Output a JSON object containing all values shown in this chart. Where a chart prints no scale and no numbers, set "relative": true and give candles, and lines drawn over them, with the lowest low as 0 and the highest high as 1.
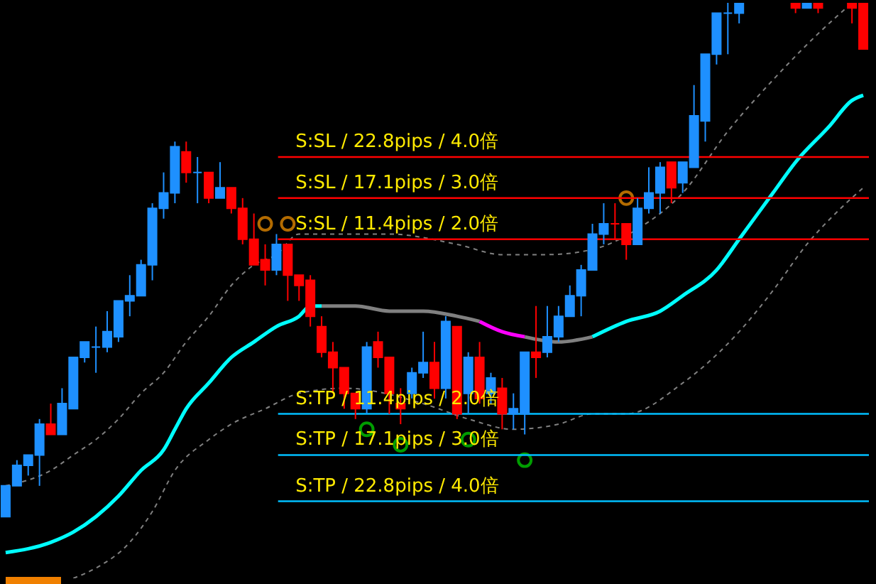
{
  "chart_data": {
    "type": "candlestick",
    "relative": true,
    "categories": [
      null,
      null,
      null,
      null,
      null,
      null,
      null,
      null,
      null,
      null,
      null,
      null,
      null,
      null,
      null,
      null,
      null,
      null,
      null,
      null,
      null,
      null,
      null,
      null,
      null,
      null,
      null,
      null,
      null,
      null,
      null,
      null,
      null,
      null,
      null,
      null,
      null,
      null,
      null,
      null,
      null,
      null,
      null,
      null,
      null,
      null,
      null,
      null,
      null,
      null,
      null,
      null,
      null,
      null,
      null,
      null,
      null,
      null,
      null,
      null,
      null,
      null,
      null,
      null,
      null,
      null,
      null,
      null,
      null,
      null,
      null,
      null,
      null,
      null,
      null,
      null,
      null
    ],
    "ohlc": [
      [
        0.0,
        0.06,
        0.0,
        0.06
      ],
      [
        0.06,
        0.11,
        0.06,
        0.1
      ],
      [
        0.1,
        0.12,
        0.08,
        0.12
      ],
      [
        0.12,
        0.19,
        0.06,
        0.18
      ],
      [
        0.18,
        0.22,
        0.16,
        0.16
      ],
      [
        0.16,
        0.25,
        0.16,
        0.22
      ],
      [
        0.21,
        0.31,
        0.21,
        0.31
      ],
      [
        0.31,
        0.34,
        0.3,
        0.34
      ],
      [
        0.33,
        0.37,
        0.28,
        0.33
      ],
      [
        0.33,
        0.4,
        0.32,
        0.36
      ],
      [
        0.35,
        0.42,
        0.34,
        0.42
      ],
      [
        0.42,
        0.47,
        0.39,
        0.43
      ],
      [
        0.43,
        0.5,
        0.43,
        0.49
      ],
      [
        0.49,
        0.61,
        0.46,
        0.6
      ],
      [
        0.6,
        0.67,
        0.58,
        0.63
      ],
      [
        0.63,
        0.73,
        0.61,
        0.72
      ],
      [
        0.71,
        0.73,
        0.65,
        0.67
      ],
      [
        0.67,
        0.7,
        0.61,
        0.67
      ],
      [
        0.67,
        0.67,
        0.61,
        0.62
      ],
      [
        0.62,
        0.69,
        0.62,
        0.64
      ],
      [
        0.64,
        0.64,
        0.59,
        0.6
      ],
      [
        0.6,
        0.62,
        0.53,
        0.54
      ],
      [
        0.54,
        0.59,
        0.49,
        0.49
      ],
      [
        0.5,
        0.53,
        0.45,
        0.48
      ],
      [
        0.48,
        0.55,
        0.47,
        0.53
      ],
      [
        0.53,
        0.53,
        0.42,
        0.47
      ],
      [
        0.47,
        0.47,
        0.42,
        0.45
      ],
      [
        0.46,
        0.47,
        0.37,
        0.39
      ],
      [
        0.37,
        0.39,
        0.31,
        0.32
      ],
      [
        0.32,
        0.34,
        0.24,
        0.29
      ],
      [
        0.29,
        0.29,
        0.21,
        0.24
      ],
      [
        0.24,
        0.24,
        0.19,
        0.21
      ],
      [
        0.21,
        0.34,
        0.2,
        0.33
      ],
      [
        0.34,
        0.36,
        0.29,
        0.31
      ],
      [
        0.31,
        0.31,
        0.2,
        0.24
      ],
      [
        0.22,
        0.25,
        0.18,
        0.21
      ],
      [
        0.24,
        0.29,
        0.23,
        0.28
      ],
      [
        0.28,
        0.36,
        0.27,
        0.3
      ],
      [
        0.3,
        0.34,
        0.23,
        0.25
      ],
      [
        0.25,
        0.39,
        0.23,
        0.38
      ],
      [
        0.37,
        0.37,
        0.19,
        0.2
      ],
      [
        0.24,
        0.32,
        0.2,
        0.31
      ],
      [
        0.31,
        0.34,
        0.22,
        0.23
      ],
      [
        0.24,
        0.28,
        0.22,
        0.27
      ],
      [
        0.25,
        0.27,
        0.17,
        0.2
      ],
      [
        0.2,
        0.24,
        0.17,
        0.21
      ],
      [
        0.2,
        0.32,
        0.16,
        0.32
      ],
      [
        0.32,
        0.41,
        0.27,
        0.31
      ],
      [
        0.32,
        0.41,
        0.31,
        0.35
      ],
      [
        0.35,
        0.41,
        0.34,
        0.39
      ],
      [
        0.39,
        0.45,
        0.39,
        0.43
      ],
      [
        0.43,
        0.49,
        0.39,
        0.48
      ],
      [
        0.48,
        0.57,
        0.48,
        0.55
      ],
      [
        0.55,
        0.61,
        0.53,
        0.57
      ],
      [
        0.57,
        0.61,
        0.54,
        0.57
      ],
      [
        0.57,
        0.57,
        0.5,
        0.53
      ],
      [
        0.53,
        0.62,
        0.53,
        0.6
      ],
      [
        0.6,
        0.68,
        0.59,
        0.63
      ],
      [
        0.63,
        0.69,
        0.59,
        0.68
      ],
      [
        0.69,
        0.69,
        0.61,
        0.64
      ],
      [
        0.65,
        0.69,
        0.63,
        0.69
      ],
      [
        0.68,
        0.84,
        0.68,
        0.78
      ],
      [
        0.77,
        0.9,
        0.73,
        0.9
      ],
      [
        0.9,
        0.98,
        0.88,
        0.98
      ],
      [
        0.98,
        1.0,
        0.9,
        0.98
      ],
      [
        0.98,
        1.0,
        0.96,
        1.0
      ],
      null,
      null,
      null,
      null,
      [
        1.0,
        1.0,
        0.98,
        0.99
      ],
      [
        0.99,
        1.0,
        0.99,
        1.0
      ],
      [
        1.0,
        1.0,
        0.98,
        0.99
      ],
      null,
      null,
      [
        1.0,
        1.0,
        0.96,
        0.99
      ],
      [
        1.0,
        1.0,
        0.91,
        0.91
      ]
    ],
    "colors": [
      "#1e90ff",
      "#1e90ff",
      "#1e90ff",
      "#1e90ff",
      "#ff0000",
      "#1e90ff",
      "#1e90ff",
      "#1e90ff",
      "#1e90ff",
      "#1e90ff",
      "#1e90ff",
      "#1e90ff",
      "#1e90ff",
      "#1e90ff",
      "#1e90ff",
      "#1e90ff",
      "#ff0000",
      "#1e90ff",
      "#ff0000",
      "#1e90ff",
      "#ff0000",
      "#ff0000",
      "#ff0000",
      "#ff0000",
      "#1e90ff",
      "#ff0000",
      "#ff0000",
      "#ff0000",
      "#ff0000",
      "#ff0000",
      "#ff0000",
      "#ff0000",
      "#1e90ff",
      "#ff0000",
      "#ff0000",
      "#ff0000",
      "#1e90ff",
      "#1e90ff",
      "#ff0000",
      "#1e90ff",
      "#ff0000",
      "#1e90ff",
      "#ff0000",
      "#1e90ff",
      "#ff0000",
      "#1e90ff",
      "#1e90ff",
      "#ff0000",
      "#1e90ff",
      "#1e90ff",
      "#1e90ff",
      "#1e90ff",
      "#1e90ff",
      "#1e90ff",
      "#ff0000",
      "#ff0000",
      "#1e90ff",
      "#1e90ff",
      "#1e90ff",
      "#ff0000",
      "#1e90ff",
      "#1e90ff",
      "#1e90ff",
      "#1e90ff",
      "#1e90ff",
      "#1e90ff",
      null,
      null,
      null,
      null,
      "#ff0000",
      "#1e90ff",
      "#ff0000",
      null,
      null,
      "#ff0000",
      "#ff0000"
    ],
    "series": [
      {
        "type": "line",
        "color": "#808080",
        "line_style": "dashed",
        "values": [
          0.06,
          null,
          null,
          null,
          0.09,
          null,
          0.12,
          null,
          0.15,
          null,
          0.19,
          null,
          0.24,
          null,
          0.28,
          null,
          0.34,
          null,
          0.39,
          null,
          0.45,
          null,
          0.49,
          null,
          0.51,
          null,
          0.55,
          null,
          null,
          null,
          0.55,
          null,
          null,
          null,
          0.55,
          null,
          null,
          null,
          null,
          null,
          0.53,
          null,
          null,
          null,
          0.51,
          null,
          null,
          null,
          0.51,
          null,
          null,
          null,
          0.52,
          null,
          null,
          null,
          0.56,
          null,
          null,
          null,
          0.63,
          null,
          null,
          null,
          0.75,
          null,
          null,
          null,
          0.85,
          null,
          null,
          null,
          0.94,
          null,
          null,
          1.0,
          null
        ]
      },
      {
        "type": "line",
        "color": "#808080",
        "line_style": "dashed",
        "values": [
          null,
          null,
          null,
          null,
          null,
          null,
          -0.12,
          null,
          -0.1,
          null,
          null,
          -0.05,
          null,
          0.01,
          null,
          0.09,
          null,
          null,
          0.15,
          null,
          0.18,
          null,
          null,
          0.21,
          null,
          null,
          0.24,
          null,
          null,
          null,
          0.25,
          null,
          null,
          null,
          null,
          null,
          null,
          0.22,
          null,
          null,
          null,
          0.19,
          null,
          null,
          null,
          0.17,
          null,
          null,
          null,
          0.18,
          null,
          null,
          0.2,
          null,
          null,
          0.2,
          null,
          null,
          null,
          null,
          0.26,
          null,
          null,
          null,
          null,
          0.36,
          null,
          null,
          0.44,
          null,
          null,
          0.53,
          null,
          null,
          0.6,
          null,
          0.64
        ]
      },
      {
        "type": "line",
        "color": "#00ffff",
        "values": [
          -0.07,
          null,
          null,
          null,
          -0.05,
          null,
          -0.03,
          null,
          0.0,
          null,
          0.04,
          null,
          0.09,
          null,
          0.13,
          0.17,
          0.21,
          null,
          0.26,
          null,
          0.31,
          null,
          0.34,
          null,
          0.37,
          null,
          0.39,
          0.41,
          0.41,
          null,
          null,
          null,
          null,
          null,
          null,
          null,
          null,
          null,
          null,
          null,
          null,
          null,
          null,
          null,
          null,
          null,
          null,
          null,
          null,
          null,
          null,
          null,
          null,
          null,
          null,
          null,
          null,
          null,
          null,
          null,
          null,
          null,
          null,
          null,
          null,
          null,
          null,
          null,
          null,
          null,
          null,
          null,
          null,
          null,
          null,
          null,
          null
        ]
      },
      {
        "type": "line",
        "color": "#808080",
        "values": [
          null,
          null,
          null,
          null,
          null,
          null,
          null,
          null,
          null,
          null,
          null,
          null,
          null,
          null,
          null,
          null,
          null,
          null,
          null,
          null,
          null,
          null,
          null,
          null,
          null,
          null,
          null,
          null,
          0.41,
          null,
          null,
          0.41,
          null,
          null,
          0.4,
          null,
          null,
          0.4,
          null,
          null,
          0.39,
          null,
          0.38,
          null,
          null,
          null,
          null,
          null,
          null,
          null,
          null,
          null,
          null,
          null,
          null,
          null,
          null,
          null,
          null,
          null,
          null,
          null,
          null,
          null,
          null,
          null,
          null,
          null,
          null,
          null,
          null,
          null,
          null,
          null,
          null,
          null,
          null
        ]
      },
      {
        "type": "line",
        "color": "#ff00ff",
        "values": [
          null,
          null,
          null,
          null,
          null,
          null,
          null,
          null,
          null,
          null,
          null,
          null,
          null,
          null,
          null,
          null,
          null,
          null,
          null,
          null,
          null,
          null,
          null,
          null,
          null,
          null,
          null,
          null,
          null,
          null,
          null,
          null,
          null,
          null,
          null,
          null,
          null,
          null,
          null,
          null,
          null,
          null,
          0.38,
          null,
          0.36,
          null,
          0.35,
          null,
          null,
          null,
          null,
          null,
          null,
          null,
          null,
          null,
          null,
          null,
          null,
          null,
          null,
          null,
          null,
          null,
          null,
          null,
          null,
          null,
          null,
          null,
          null,
          null,
          null,
          null,
          null,
          null,
          null
        ]
      },
      {
        "type": "line",
        "color": "#808080",
        "values": [
          null,
          null,
          null,
          null,
          null,
          null,
          null,
          null,
          null,
          null,
          null,
          null,
          null,
          null,
          null,
          null,
          null,
          null,
          null,
          null,
          null,
          null,
          null,
          null,
          null,
          null,
          null,
          null,
          null,
          null,
          null,
          null,
          null,
          null,
          null,
          null,
          null,
          null,
          null,
          null,
          null,
          null,
          null,
          null,
          null,
          null,
          0.35,
          null,
          null,
          0.34,
          null,
          null,
          0.35,
          null,
          null,
          null,
          null,
          null,
          null,
          null,
          null,
          null,
          null,
          null,
          null,
          null,
          null,
          null,
          null,
          null,
          null,
          null,
          null,
          null,
          null,
          null,
          null
        ]
      },
      {
        "type": "line",
        "color": "#00ffff",
        "values": [
          null,
          null,
          null,
          null,
          null,
          null,
          null,
          null,
          null,
          null,
          null,
          null,
          null,
          null,
          null,
          null,
          null,
          null,
          null,
          null,
          null,
          null,
          null,
          null,
          null,
          null,
          null,
          null,
          null,
          null,
          null,
          null,
          null,
          null,
          null,
          null,
          null,
          null,
          null,
          null,
          null,
          null,
          null,
          null,
          null,
          null,
          null,
          null,
          null,
          null,
          null,
          null,
          0.35,
          null,
          null,
          0.38,
          null,
          null,
          0.4,
          null,
          0.43,
          null,
          null,
          0.48,
          null,
          0.54,
          null,
          null,
          0.63,
          null,
          0.69,
          null,
          null,
          0.76,
          null,
          0.81,
          0.82
        ]
      },
      {
        "type": "scatter",
        "color": "#ff9900",
        "marker": "circle",
        "values": [
          null,
          null,
          null,
          null,
          null,
          null,
          null,
          null,
          null,
          null,
          null,
          null,
          null,
          null,
          null,
          null,
          null,
          null,
          null,
          null,
          null,
          null,
          null,
          0.57,
          null,
          0.57,
          null,
          null,
          null,
          null,
          null,
          null,
          null,
          null,
          null,
          null,
          null,
          null,
          null,
          null,
          null,
          null,
          null,
          null,
          null,
          null,
          null,
          null,
          null,
          null,
          null,
          null,
          null,
          null,
          null,
          0.62,
          null,
          null,
          null,
          null,
          null,
          null,
          null,
          null,
          null,
          null,
          null,
          null,
          null,
          null,
          null,
          null,
          null,
          null,
          null,
          null,
          null
        ]
      },
      {
        "type": "scatter",
        "color": "#00e000",
        "marker": "circle",
        "values": [
          null,
          null,
          null,
          null,
          null,
          null,
          null,
          null,
          null,
          null,
          null,
          null,
          null,
          null,
          null,
          null,
          null,
          null,
          null,
          null,
          null,
          null,
          null,
          null,
          null,
          null,
          null,
          null,
          null,
          null,
          null,
          null,
          0.17,
          null,
          null,
          0.14,
          null,
          null,
          null,
          null,
          null,
          0.15,
          null,
          null,
          null,
          null,
          0.11,
          null,
          null,
          null,
          null,
          null,
          null,
          null,
          null,
          null,
          null,
          null,
          null,
          null,
          null,
          null,
          null,
          null,
          null,
          null,
          null,
          null,
          null,
          null,
          null,
          null,
          null,
          null,
          null,
          null,
          null
        ]
      }
    ],
    "ref_lines": [
      {
        "axis": "y",
        "value": 0.7,
        "label": "S:SL / 22.8pips / 4.0倍",
        "color": "#ff0000"
      },
      {
        "axis": "y",
        "value": 0.62,
        "label": "S:SL / 17.1pips / 3.0倍",
        "color": "#ff0000"
      },
      {
        "axis": "y",
        "value": 0.54,
        "label": "S:SL / 11.4pips / 2.0倍",
        "color": "#ff0000"
      },
      {
        "axis": "y",
        "value": 0.2,
        "label": "S:TP / 11.4pips / 2.0倍",
        "color": "#00bfff"
      },
      {
        "axis": "y",
        "value": 0.12,
        "label": "S:TP / 17.1pips / 3.0倍",
        "color": "#00bfff"
      },
      {
        "axis": "y",
        "value": 0.03,
        "label": "S:TP / 22.8pips / 4.0倍",
        "color": "#00bfff"
      }
    ]
  }
}
